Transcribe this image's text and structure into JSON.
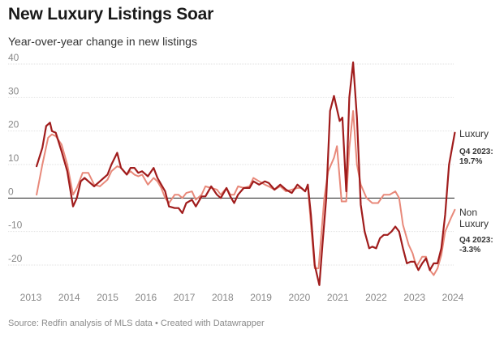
{
  "header": {
    "title": "New Luxury Listings Soar",
    "subtitle": "Year-over-year change in new listings"
  },
  "footer": {
    "source": "Source: Redfin analysis of MLS data • Created with Datawrapper"
  },
  "colors": {
    "luxury": "#a01c1c",
    "non_luxury": "#e8897a",
    "grid": "#e2e2e2",
    "zero_line": "#222222",
    "axis_text": "#888888"
  },
  "chart_data": {
    "type": "line",
    "title": "New Luxury Listings Soar",
    "subtitle": "Year-over-year change in new listings",
    "xlabel": "",
    "ylabel": "",
    "xlim": [
      2013,
      2024
    ],
    "ylim": [
      -25,
      40
    ],
    "x_ticks": [
      "2013",
      "2014",
      "2015",
      "2016",
      "2017",
      "2018",
      "2019",
      "2020",
      "2021",
      "2022",
      "2023",
      "2024"
    ],
    "y_ticks": [
      "40",
      "30",
      "20",
      "10",
      "0",
      "-10",
      "-20"
    ],
    "grid": true,
    "series": [
      {
        "name": "Luxury",
        "annotation": "Q4 2023:",
        "end_value": "19.7%",
        "points": [
          [
            2013.15,
            9.5
          ],
          [
            2013.3,
            15
          ],
          [
            2013.4,
            21.5
          ],
          [
            2013.5,
            22.5
          ],
          [
            2013.55,
            20
          ],
          [
            2013.65,
            19.5
          ],
          [
            2013.8,
            14
          ],
          [
            2013.95,
            8
          ],
          [
            2014.1,
            -2.5
          ],
          [
            2014.2,
            0
          ],
          [
            2014.3,
            5
          ],
          [
            2014.4,
            6
          ],
          [
            2014.5,
            5
          ],
          [
            2014.65,
            3.5
          ],
          [
            2014.8,
            5
          ],
          [
            2015.0,
            7
          ],
          [
            2015.1,
            10
          ],
          [
            2015.25,
            13.5
          ],
          [
            2015.35,
            9
          ],
          [
            2015.5,
            7
          ],
          [
            2015.6,
            9
          ],
          [
            2015.7,
            9
          ],
          [
            2015.8,
            7.5
          ],
          [
            2015.9,
            8
          ],
          [
            2016.05,
            6.5
          ],
          [
            2016.2,
            9
          ],
          [
            2016.3,
            6
          ],
          [
            2016.4,
            4
          ],
          [
            2016.5,
            2
          ],
          [
            2016.6,
            -2.5
          ],
          [
            2016.75,
            -3
          ],
          [
            2016.85,
            -3
          ],
          [
            2016.95,
            -4.5
          ],
          [
            2017.05,
            -1.5
          ],
          [
            2017.2,
            -0.5
          ],
          [
            2017.3,
            -2.5
          ],
          [
            2017.45,
            0.5
          ],
          [
            2017.55,
            0.5
          ],
          [
            2017.7,
            3.5
          ],
          [
            2017.85,
            1
          ],
          [
            2017.95,
            0
          ],
          [
            2018.1,
            3
          ],
          [
            2018.2,
            0.5
          ],
          [
            2018.3,
            -1.5
          ],
          [
            2018.4,
            1
          ],
          [
            2018.55,
            3
          ],
          [
            2018.7,
            3
          ],
          [
            2018.8,
            5
          ],
          [
            2018.95,
            4
          ],
          [
            2019.1,
            5
          ],
          [
            2019.2,
            4.5
          ],
          [
            2019.35,
            2.5
          ],
          [
            2019.5,
            4
          ],
          [
            2019.65,
            2.5
          ],
          [
            2019.8,
            1.5
          ],
          [
            2019.95,
            4
          ],
          [
            2020.05,
            3
          ],
          [
            2020.15,
            2
          ],
          [
            2020.22,
            4
          ],
          [
            2020.3,
            -5
          ],
          [
            2020.4,
            -20
          ],
          [
            2020.52,
            -26
          ],
          [
            2020.6,
            -14
          ],
          [
            2020.7,
            0
          ],
          [
            2020.8,
            26
          ],
          [
            2020.9,
            30.5
          ],
          [
            2021.05,
            23
          ],
          [
            2021.12,
            24
          ],
          [
            2021.22,
            2
          ],
          [
            2021.3,
            30
          ],
          [
            2021.4,
            40.5
          ],
          [
            2021.5,
            24
          ],
          [
            2021.6,
            -2
          ],
          [
            2021.7,
            -10
          ],
          [
            2021.82,
            -15
          ],
          [
            2021.9,
            -14.5
          ],
          [
            2022.0,
            -15
          ],
          [
            2022.1,
            -12
          ],
          [
            2022.2,
            -11
          ],
          [
            2022.3,
            -11
          ],
          [
            2022.4,
            -10
          ],
          [
            2022.5,
            -8.5
          ],
          [
            2022.6,
            -10
          ],
          [
            2022.7,
            -15
          ],
          [
            2022.8,
            -19.5
          ],
          [
            2022.9,
            -19
          ],
          [
            2023.0,
            -19
          ],
          [
            2023.1,
            -21.5
          ],
          [
            2023.2,
            -19.5
          ],
          [
            2023.3,
            -18
          ],
          [
            2023.4,
            -21.5
          ],
          [
            2023.5,
            -19.5
          ],
          [
            2023.6,
            -19.5
          ],
          [
            2023.7,
            -15
          ],
          [
            2023.8,
            -5
          ],
          [
            2023.9,
            10
          ],
          [
            2024.05,
            19.5
          ]
        ]
      },
      {
        "name": "Non Luxury",
        "name_line1": "Non",
        "name_line2": "Luxury",
        "annotation": "Q4 2023:",
        "end_value": "-3.3%",
        "points": [
          [
            2013.15,
            1
          ],
          [
            2013.3,
            10
          ],
          [
            2013.45,
            18
          ],
          [
            2013.55,
            19
          ],
          [
            2013.65,
            18.5
          ],
          [
            2013.8,
            16
          ],
          [
            2013.95,
            10
          ],
          [
            2014.1,
            1
          ],
          [
            2014.2,
            3
          ],
          [
            2014.35,
            7.5
          ],
          [
            2014.5,
            7.5
          ],
          [
            2014.65,
            4
          ],
          [
            2014.8,
            3.5
          ],
          [
            2015.0,
            5.5
          ],
          [
            2015.1,
            8
          ],
          [
            2015.25,
            9.5
          ],
          [
            2015.35,
            9
          ],
          [
            2015.5,
            7
          ],
          [
            2015.6,
            8
          ],
          [
            2015.7,
            7
          ],
          [
            2015.8,
            6.5
          ],
          [
            2015.9,
            7
          ],
          [
            2016.05,
            4
          ],
          [
            2016.2,
            6
          ],
          [
            2016.3,
            5
          ],
          [
            2016.4,
            3
          ],
          [
            2016.5,
            0
          ],
          [
            2016.6,
            -1.5
          ],
          [
            2016.75,
            1
          ],
          [
            2016.85,
            1
          ],
          [
            2016.95,
            0
          ],
          [
            2017.05,
            1.5
          ],
          [
            2017.2,
            2
          ],
          [
            2017.3,
            -0.5
          ],
          [
            2017.45,
            1
          ],
          [
            2017.55,
            3.5
          ],
          [
            2017.7,
            3
          ],
          [
            2017.85,
            2.5
          ],
          [
            2017.95,
            1
          ],
          [
            2018.1,
            3
          ],
          [
            2018.2,
            1
          ],
          [
            2018.3,
            1
          ],
          [
            2018.4,
            3.5
          ],
          [
            2018.55,
            3
          ],
          [
            2018.7,
            3.5
          ],
          [
            2018.8,
            6
          ],
          [
            2018.95,
            5
          ],
          [
            2019.1,
            4
          ],
          [
            2019.2,
            3.5
          ],
          [
            2019.35,
            2.5
          ],
          [
            2019.5,
            3.5
          ],
          [
            2019.65,
            2
          ],
          [
            2019.8,
            2.5
          ],
          [
            2019.95,
            3
          ],
          [
            2020.05,
            3
          ],
          [
            2020.15,
            2
          ],
          [
            2020.22,
            3.5
          ],
          [
            2020.3,
            -8
          ],
          [
            2020.4,
            -21
          ],
          [
            2020.5,
            -21
          ],
          [
            2020.65,
            0
          ],
          [
            2020.75,
            8
          ],
          [
            2020.9,
            12
          ],
          [
            2020.98,
            15.5
          ],
          [
            2021.1,
            -1
          ],
          [
            2021.22,
            -1
          ],
          [
            2021.3,
            15
          ],
          [
            2021.4,
            26
          ],
          [
            2021.5,
            10
          ],
          [
            2021.6,
            4
          ],
          [
            2021.75,
            0
          ],
          [
            2021.9,
            -1.5
          ],
          [
            2022.05,
            -1.5
          ],
          [
            2022.2,
            1
          ],
          [
            2022.35,
            1
          ],
          [
            2022.5,
            2
          ],
          [
            2022.6,
            0
          ],
          [
            2022.7,
            -8
          ],
          [
            2022.85,
            -14
          ],
          [
            2022.95,
            -16.5
          ],
          [
            2023.05,
            -20.5
          ],
          [
            2023.2,
            -17.5
          ],
          [
            2023.3,
            -17.5
          ],
          [
            2023.4,
            -21.5
          ],
          [
            2023.5,
            -23
          ],
          [
            2023.6,
            -21
          ],
          [
            2023.7,
            -17
          ],
          [
            2023.8,
            -10
          ],
          [
            2023.95,
            -6
          ],
          [
            2024.05,
            -3.5
          ]
        ]
      }
    ]
  }
}
